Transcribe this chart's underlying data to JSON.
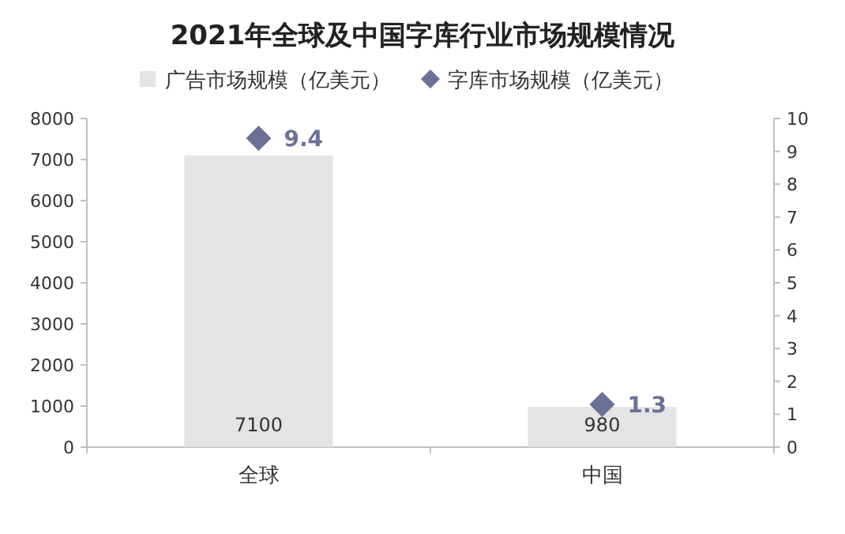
{
  "chart_data": {
    "type": "bar",
    "title": "2021年全球及中国字库行业市场规模情况",
    "categories": [
      "全球",
      "中国"
    ],
    "series": [
      {
        "name": "广告市场规模（亿美元）",
        "color": "#e4e4e4",
        "values": [
          7100,
          980
        ]
      },
      {
        "name": "字库市场规模（亿美元）",
        "type": "scatter",
        "axis": "y2",
        "marker": "diamond",
        "color": "#6b7196",
        "values": [
          9.4,
          1.3
        ]
      }
    ],
    "ylim": [
      0,
      8000
    ],
    "yticks": [
      0,
      1000,
      2000,
      3000,
      4000,
      5000,
      6000,
      7000,
      8000
    ],
    "y2lim": [
      0,
      10
    ],
    "y2ticks": [
      0,
      1,
      2,
      3,
      4,
      5,
      6,
      7,
      8,
      9,
      10
    ],
    "data_labels": true,
    "legend": "top"
  }
}
